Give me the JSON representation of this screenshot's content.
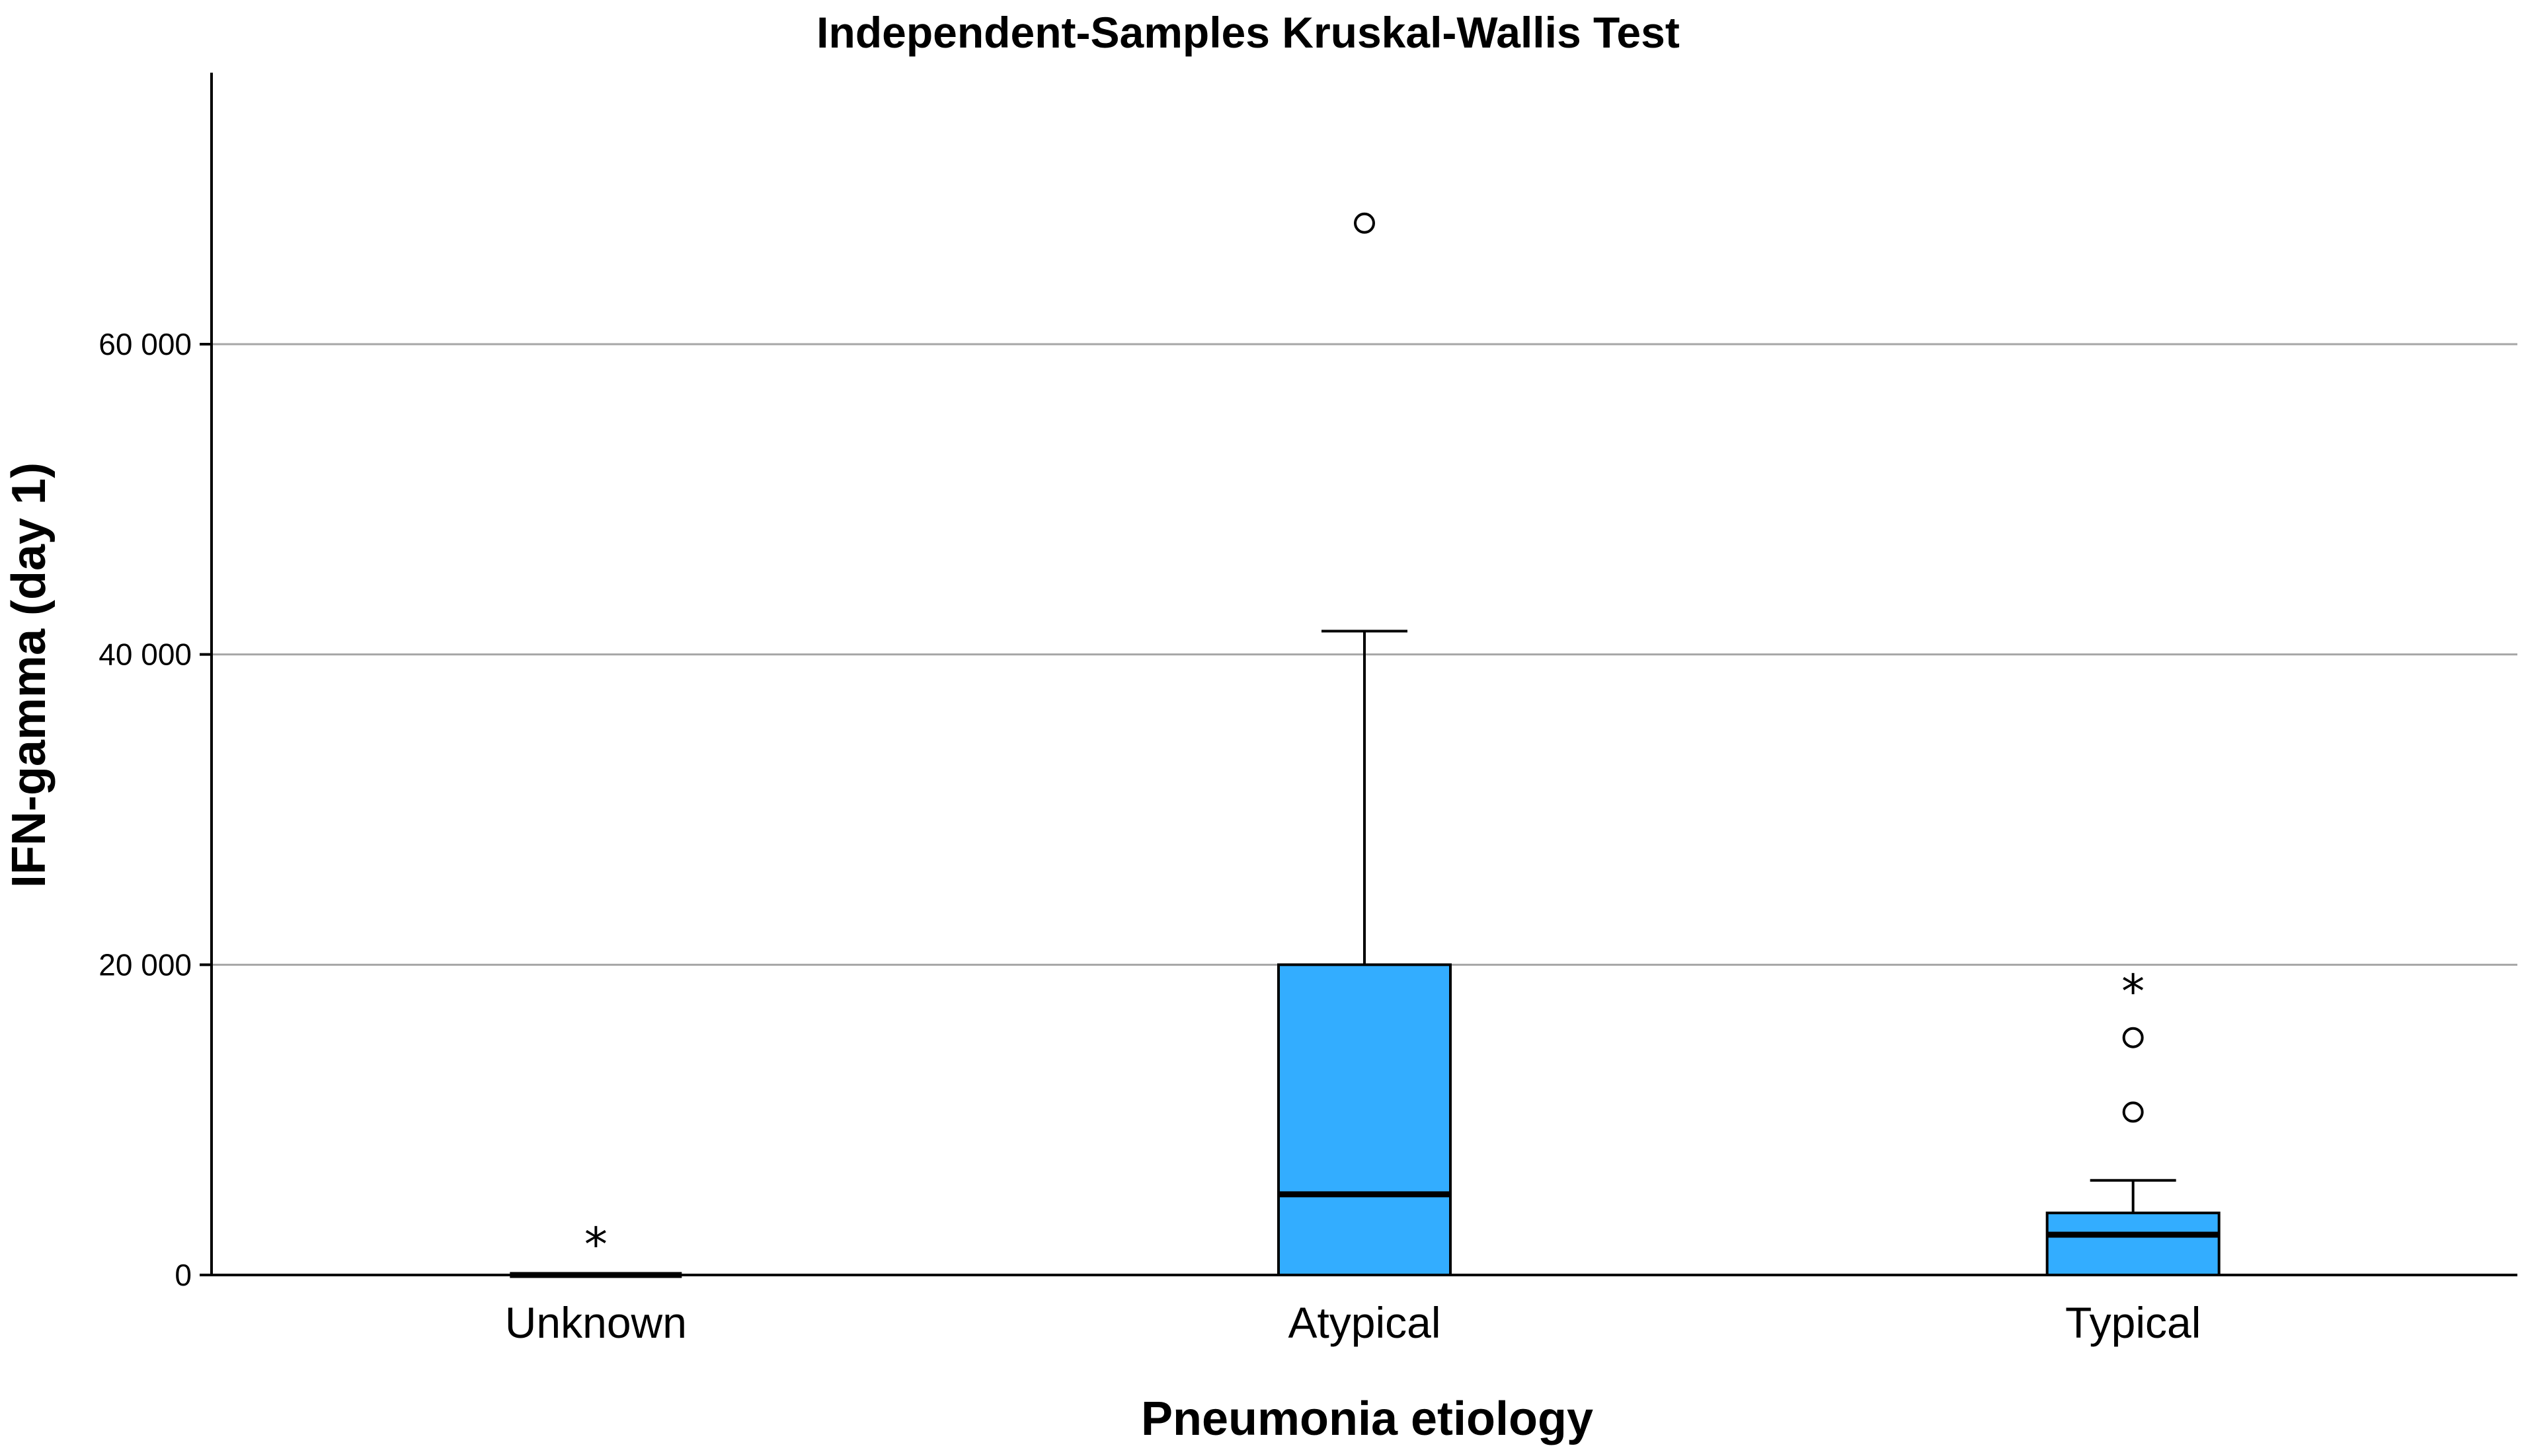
{
  "chart_data": {
    "type": "boxplot",
    "title": "Independent-Samples Kruskal-Wallis Test",
    "xlabel": "Pneumonia etiology",
    "ylabel": "IFN-gamma (day 1)",
    "ylim": [
      0,
      77500
    ],
    "yticks": [
      0,
      20000,
      40000,
      60000
    ],
    "ytick_labels": [
      "0",
      "20 000",
      "40 000",
      "60 000"
    ],
    "grid": true,
    "categories": [
      "Unknown",
      "Atypical",
      "Typical"
    ],
    "box_color": "#33adff",
    "boxes": [
      {
        "category": "Unknown",
        "min": 0,
        "q1": 0,
        "median": 0,
        "q3": 0,
        "max": 0,
        "outliers": [],
        "extremes": [
          2300
        ]
      },
      {
        "category": "Atypical",
        "min": 0,
        "q1": 0,
        "median": 5200,
        "q3": 20000,
        "max": 41500,
        "outliers": [
          67800
        ],
        "extremes": []
      },
      {
        "category": "Typical",
        "min": 0,
        "q1": 0,
        "median": 2600,
        "q3": 4000,
        "max": 6100,
        "outliers": [
          10500,
          15300
        ],
        "extremes": [
          18600
        ]
      }
    ]
  }
}
